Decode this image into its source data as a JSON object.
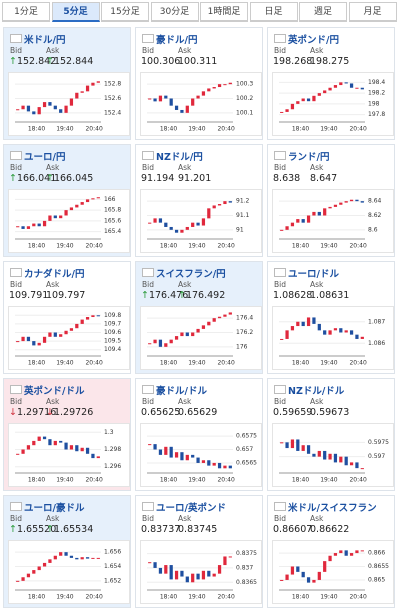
{
  "tabs": [
    "1分足",
    "5分足",
    "15分足",
    "30分足",
    "1時間足",
    "日足",
    "週足",
    "月足"
  ],
  "selected_tab": 1,
  "bid_label": "Bid",
  "ask_label": "Ask",
  "times": [
    "18:40",
    "19:40",
    "20:40"
  ],
  "up_color": "#e0283c",
  "down_color": "#1f4fa0",
  "cards": [
    {
      "name": "米ドル/円",
      "bid": "152.842",
      "ask": "152.844",
      "arrow": "↑",
      "trend": "up",
      "ylim": [
        152.3,
        152.9
      ],
      "yticks": [
        152.8,
        152.6,
        152.4
      ],
      "closes": [
        152.45,
        152.5,
        152.42,
        152.38,
        152.48,
        152.55,
        152.5,
        152.45,
        152.4,
        152.5,
        152.6,
        152.68,
        152.7,
        152.78,
        152.82,
        152.84
      ]
    },
    {
      "name": "豪ドル/円",
      "bid": "100.306",
      "ask": "100.311",
      "ylim": [
        100.05,
        100.35
      ],
      "yticks": [
        100.3,
        100.2,
        100.1
      ],
      "closes": [
        100.2,
        100.18,
        100.22,
        100.2,
        100.15,
        100.12,
        100.1,
        100.15,
        100.2,
        100.22,
        100.25,
        100.27,
        100.28,
        100.3,
        100.3,
        100.31
      ]
    },
    {
      "name": "英ポンド/円",
      "bid": "198.268",
      "ask": "198.275",
      "ylim": [
        197.7,
        198.5
      ],
      "yticks": [
        198.4,
        198.2,
        198,
        197.8
      ],
      "closes": [
        197.85,
        197.9,
        198.0,
        198.05,
        198.1,
        198.05,
        198.15,
        198.2,
        198.25,
        198.3,
        198.35,
        198.4,
        198.38,
        198.3,
        198.3,
        198.27
      ]
    },
    {
      "name": "ユーロ/円",
      "bid": "166.041",
      "ask": "166.045",
      "arrow": "↑",
      "trend": "up",
      "ylim": [
        165.3,
        166.1
      ],
      "yticks": [
        166,
        165.8,
        165.6,
        165.4
      ],
      "closes": [
        165.5,
        165.45,
        165.5,
        165.55,
        165.5,
        165.6,
        165.7,
        165.65,
        165.7,
        165.8,
        165.85,
        165.9,
        165.95,
        166,
        166.02,
        166.04
      ]
    },
    {
      "name": "NZドル/円",
      "bid": "91.194",
      "ask": "91.201",
      "ylim": [
        90.95,
        91.25
      ],
      "yticks": [
        91.2,
        91.1,
        91
      ],
      "closes": [
        91.05,
        91.08,
        91.05,
        91.02,
        91.0,
        90.98,
        91.0,
        91.02,
        91.05,
        91.03,
        91.08,
        91.15,
        91.17,
        91.18,
        91.2,
        91.19
      ]
    },
    {
      "name": "ランド/円",
      "bid": "8.638",
      "ask": "8.647",
      "ylim": [
        8.59,
        8.65
      ],
      "yticks": [
        8.64,
        8.62,
        8.6
      ],
      "closes": [
        8.6,
        8.605,
        8.61,
        8.615,
        8.61,
        8.62,
        8.625,
        8.62,
        8.63,
        8.632,
        8.635,
        8.638,
        8.64,
        8.642,
        8.64,
        8.638
      ]
    },
    {
      "name": "カナダドル/円",
      "bid": "109.791",
      "ask": "109.797",
      "ylim": [
        109.35,
        109.85
      ],
      "yticks": [
        109.8,
        109.7,
        109.6,
        109.5,
        109.4
      ],
      "closes": [
        109.5,
        109.55,
        109.5,
        109.45,
        109.48,
        109.55,
        109.6,
        109.55,
        109.58,
        109.62,
        109.65,
        109.7,
        109.75,
        109.78,
        109.8,
        109.79
      ]
    },
    {
      "name": "スイスフラン/円",
      "bid": "176.476",
      "ask": "176.492",
      "arrow": "↑",
      "trend": "up",
      "ylim": [
        175.9,
        176.5
      ],
      "yticks": [
        176.4,
        176.2,
        176
      ],
      "closes": [
        176.05,
        176.1,
        176.0,
        176.05,
        176.1,
        176.15,
        176.2,
        176.15,
        176.2,
        176.25,
        176.3,
        176.35,
        176.4,
        176.42,
        176.45,
        176.48
      ]
    },
    {
      "name": "ユーロ/ドル",
      "bid": "1.08628",
      "ask": "1.08631",
      "ylim": [
        1.0855,
        1.0875
      ],
      "yticks": [
        1.087,
        1.086
      ],
      "closes": [
        1.0862,
        1.0866,
        1.0868,
        1.087,
        1.0868,
        1.0872,
        1.0869,
        1.0866,
        1.0864,
        1.0866,
        1.0867,
        1.0865,
        1.0866,
        1.0864,
        1.0862,
        1.0863
      ]
    },
    {
      "name": "英ポンド/ドル",
      "bid": "1.29716",
      "ask": "1.29726",
      "arrow": "↓",
      "trend": "down",
      "ylim": [
        1.2955,
        1.3005
      ],
      "yticks": [
        1.3,
        1.298,
        1.296
      ],
      "closes": [
        1.2975,
        1.298,
        1.2985,
        1.299,
        1.2995,
        1.2992,
        1.2985,
        1.299,
        1.2988,
        1.298,
        1.2985,
        1.2978,
        1.2982,
        1.2975,
        1.297,
        1.2972
      ]
    },
    {
      "name": "豪ドル/ドル",
      "bid": "0.65625",
      "ask": "0.65629",
      "ylim": [
        0.6562,
        0.6578
      ],
      "yticks": [
        0.6575,
        0.657,
        0.6565
      ],
      "closes": [
        0.6572,
        0.657,
        0.6568,
        0.6571,
        0.6567,
        0.6569,
        0.6566,
        0.6568,
        0.6567,
        0.6565,
        0.6566,
        0.6564,
        0.6565,
        0.6563,
        0.6564,
        0.6563
      ]
    },
    {
      "name": "NZドル/ドル",
      "bid": "0.59659",
      "ask": "0.59673",
      "ylim": [
        0.5965,
        0.598
      ],
      "yticks": [
        0.5975,
        0.597
      ],
      "closes": [
        0.5975,
        0.5973,
        0.5976,
        0.5972,
        0.5974,
        0.5971,
        0.597,
        0.5972,
        0.5969,
        0.5971,
        0.5968,
        0.597,
        0.5967,
        0.5968,
        0.5966,
        0.5966
      ]
    },
    {
      "name": "ユーロ/豪ドル",
      "bid": "1.65520",
      "ask": "1.65534",
      "arrow": "↑",
      "trend": "up",
      "ylim": [
        1.651,
        1.657
      ],
      "yticks": [
        1.656,
        1.654,
        1.652
      ],
      "closes": [
        1.652,
        1.6525,
        1.653,
        1.6535,
        1.654,
        1.6545,
        1.655,
        1.6555,
        1.656,
        1.6555,
        1.6552,
        1.655,
        1.6553,
        1.6551,
        1.6552,
        1.6552
      ]
    },
    {
      "name": "ユーロ/英ポンド",
      "bid": "0.83737",
      "ask": "0.83745",
      "ylim": [
        0.8363,
        0.8378
      ],
      "yticks": [
        0.8375,
        0.837,
        0.8365
      ],
      "closes": [
        0.8372,
        0.837,
        0.8368,
        0.8371,
        0.8366,
        0.8369,
        0.8367,
        0.8365,
        0.8368,
        0.8366,
        0.8369,
        0.8367,
        0.8368,
        0.8371,
        0.8374,
        0.8374
      ]
    },
    {
      "name": "米ドル/スイスフラン",
      "bid": "0.86607",
      "ask": "0.86622",
      "ylim": [
        0.8647,
        0.8663
      ],
      "yticks": [
        0.866,
        0.8655,
        0.865
      ],
      "closes": [
        0.865,
        0.8652,
        0.8655,
        0.8653,
        0.8651,
        0.8649,
        0.865,
        0.8653,
        0.8657,
        0.8659,
        0.866,
        0.8661,
        0.8659,
        0.866,
        0.8661,
        0.8661
      ]
    }
  ]
}
